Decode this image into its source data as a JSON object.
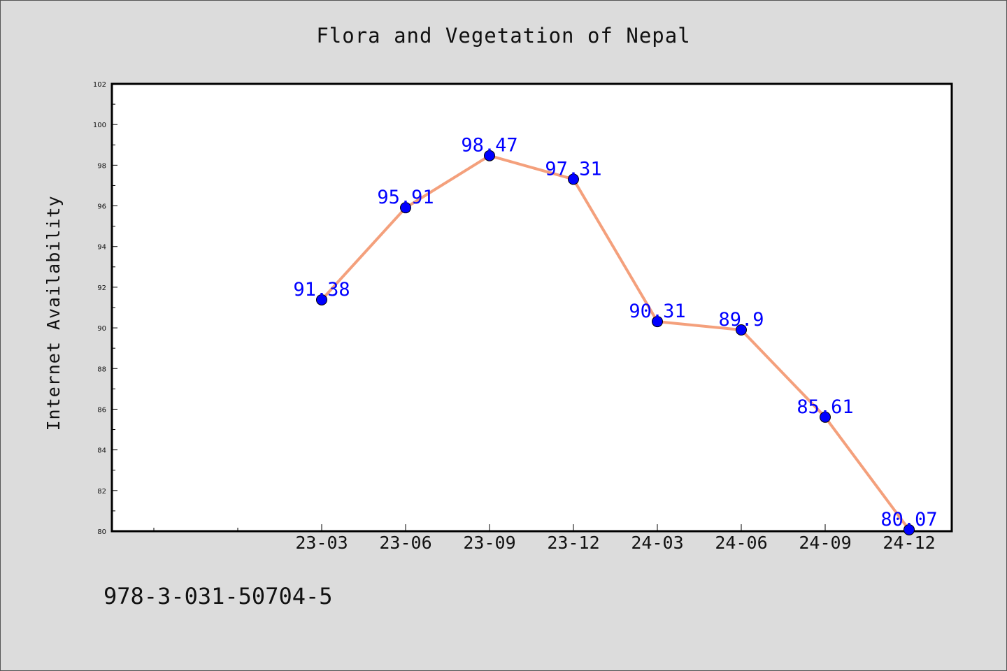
{
  "isbn": "978-3-031-50704-5",
  "colors": {
    "background": "#dcdcdc",
    "plot_background": "#ffffff",
    "line": "#f4a07c",
    "marker": "#0000ff",
    "data_label": "#0000ff"
  },
  "chart_data": {
    "type": "line",
    "title": "Flora and Vegetation of Nepal",
    "xlabel": "",
    "ylabel": "Internet Availability",
    "categories": [
      "23-03",
      "23-06",
      "23-09",
      "23-12",
      "24-03",
      "24-06",
      "24-09",
      "24-12"
    ],
    "series": [
      {
        "values": [
          91.38,
          95.91,
          98.47,
          97.31,
          90.31,
          89.9,
          85.61,
          80.07
        ]
      }
    ],
    "data_labels": [
      "91.38",
      "95.91",
      "98.47",
      "97.31",
      "90.31",
      "89.9",
      "85.61",
      "80.07"
    ],
    "ylim": [
      80,
      102
    ],
    "yticks": [
      80,
      82,
      84,
      86,
      88,
      90,
      92,
      94,
      96,
      98,
      100,
      102
    ],
    "grid": false,
    "legend": "none"
  }
}
